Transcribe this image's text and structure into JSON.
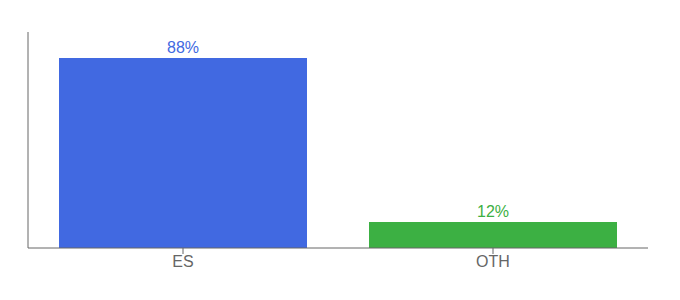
{
  "chart_data": {
    "type": "bar",
    "categories": [
      "ES",
      "OTH"
    ],
    "values": [
      88,
      12
    ],
    "value_labels": [
      "88%",
      "12%"
    ],
    "data_labels": true,
    "colors": [
      "#4169e1",
      "#3cb043"
    ],
    "ylim": [
      0,
      100
    ],
    "tick_labels": "x",
    "grid": false
  }
}
